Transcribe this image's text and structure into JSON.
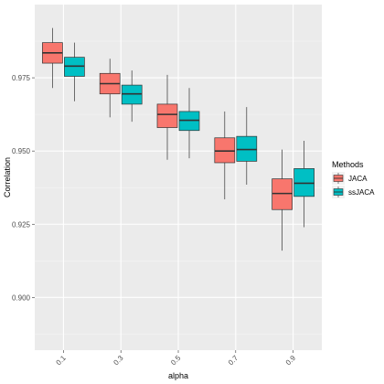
{
  "chart_data": {
    "type": "boxplot",
    "xlabel": "alpha",
    "ylabel": "Correlation",
    "categories": [
      "0.1",
      "0.3",
      "0.5",
      "0.7",
      "0.9"
    ],
    "ylim": [
      0.882,
      1.0
    ],
    "yticks": [
      0.9,
      0.925,
      0.95,
      0.975
    ],
    "ytick_labels": [
      "0.900",
      "0.925",
      "0.950",
      "0.975"
    ],
    "grid": true,
    "legend": {
      "title": "Methods",
      "position": "right"
    },
    "series": [
      {
        "name": "JACA",
        "color": "#F8766D",
        "boxes": [
          {
            "min": 0.9715,
            "q1": 0.98,
            "median": 0.9835,
            "q3": 0.987,
            "max": 0.992
          },
          {
            "min": 0.9615,
            "q1": 0.9695,
            "median": 0.973,
            "q3": 0.9765,
            "max": 0.9815
          },
          {
            "min": 0.947,
            "q1": 0.958,
            "median": 0.9625,
            "q3": 0.966,
            "max": 0.976
          },
          {
            "min": 0.9335,
            "q1": 0.946,
            "median": 0.95,
            "q3": 0.9545,
            "max": 0.9635
          },
          {
            "min": 0.916,
            "q1": 0.93,
            "median": 0.9355,
            "q3": 0.9405,
            "max": 0.9505
          }
        ]
      },
      {
        "name": "ssJACA",
        "color": "#00BFC4",
        "boxes": [
          {
            "min": 0.967,
            "q1": 0.9755,
            "median": 0.979,
            "q3": 0.982,
            "max": 0.987
          },
          {
            "min": 0.96,
            "q1": 0.966,
            "median": 0.9695,
            "q3": 0.9725,
            "max": 0.9775
          },
          {
            "min": 0.9475,
            "q1": 0.957,
            "median": 0.9605,
            "q3": 0.9635,
            "max": 0.9715
          },
          {
            "min": 0.9385,
            "q1": 0.9465,
            "median": 0.9505,
            "q3": 0.955,
            "max": 0.965
          },
          {
            "min": 0.924,
            "q1": 0.9345,
            "median": 0.939,
            "q3": 0.944,
            "max": 0.9535
          }
        ]
      }
    ]
  }
}
